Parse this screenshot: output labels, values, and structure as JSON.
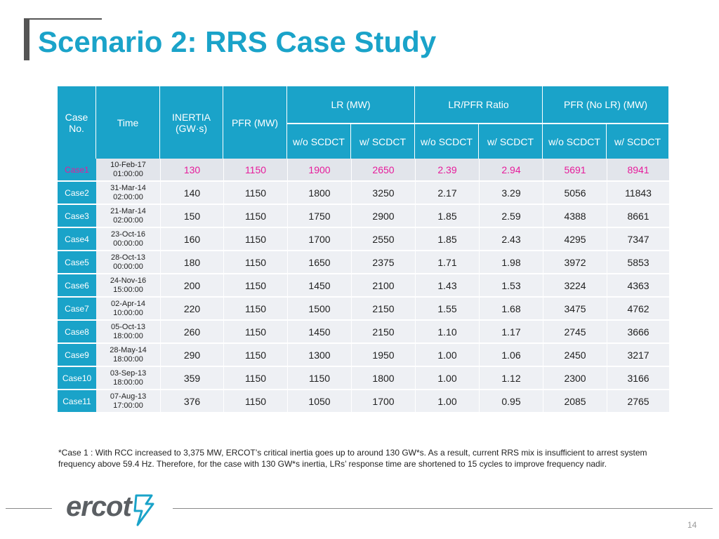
{
  "slide": {
    "title": "Scenario 2: RRS Case Study",
    "page_number": "14"
  },
  "table": {
    "headers": {
      "case": "Case No.",
      "time": "Time",
      "inertia": "INERTIA (GW·s)",
      "pfr": "PFR (MW)",
      "lr": "LR (MW)",
      "lr_pfr_ratio": "LR/PFR Ratio",
      "pfr_no_lr": "PFR (No LR) (MW)",
      "wo_scdct": "w/o SCDCT",
      "w_scdct": "w/ SCDCT"
    },
    "rows": [
      {
        "case": "Case1",
        "date": "10-Feb-17",
        "time": "01:00:00",
        "inertia": "130",
        "pfr": "1150",
        "lr_wo": "1900",
        "lr_w": "2650",
        "ratio_wo": "2.39",
        "ratio_w": "2.94",
        "nolr_wo": "5691",
        "nolr_w": "8941"
      },
      {
        "case": "Case2",
        "date": "31-Mar-14",
        "time": "02:00:00",
        "inertia": "140",
        "pfr": "1150",
        "lr_wo": "1800",
        "lr_w": "3250",
        "ratio_wo": "2.17",
        "ratio_w": "3.29",
        "nolr_wo": "5056",
        "nolr_w": "11843"
      },
      {
        "case": "Case3",
        "date": "21-Mar-14",
        "time": "02:00:00",
        "inertia": "150",
        "pfr": "1150",
        "lr_wo": "1750",
        "lr_w": "2900",
        "ratio_wo": "1.85",
        "ratio_w": "2.59",
        "nolr_wo": "4388",
        "nolr_w": "8661"
      },
      {
        "case": "Case4",
        "date": "23-Oct-16",
        "time": "00:00:00",
        "inertia": "160",
        "pfr": "1150",
        "lr_wo": "1700",
        "lr_w": "2550",
        "ratio_wo": "1.85",
        "ratio_w": "2.43",
        "nolr_wo": "4295",
        "nolr_w": "7347"
      },
      {
        "case": "Case5",
        "date": "28-Oct-13",
        "time": "00:00:00",
        "inertia": "180",
        "pfr": "1150",
        "lr_wo": "1650",
        "lr_w": "2375",
        "ratio_wo": "1.71",
        "ratio_w": "1.98",
        "nolr_wo": "3972",
        "nolr_w": "5853"
      },
      {
        "case": "Case6",
        "date": "24-Nov-16",
        "time": "15:00:00",
        "inertia": "200",
        "pfr": "1150",
        "lr_wo": "1450",
        "lr_w": "2100",
        "ratio_wo": "1.43",
        "ratio_w": "1.53",
        "nolr_wo": "3224",
        "nolr_w": "4363"
      },
      {
        "case": "Case7",
        "date": "02-Apr-14",
        "time": "10:00:00",
        "inertia": "220",
        "pfr": "1150",
        "lr_wo": "1500",
        "lr_w": "2150",
        "ratio_wo": "1.55",
        "ratio_w": "1.68",
        "nolr_wo": "3475",
        "nolr_w": "4762"
      },
      {
        "case": "Case8",
        "date": "05-Oct-13",
        "time": "18:00:00",
        "inertia": "260",
        "pfr": "1150",
        "lr_wo": "1450",
        "lr_w": "2150",
        "ratio_wo": "1.10",
        "ratio_w": "1.17",
        "nolr_wo": "2745",
        "nolr_w": "3666"
      },
      {
        "case": "Case9",
        "date": "28-May-14",
        "time": "18:00:00",
        "inertia": "290",
        "pfr": "1150",
        "lr_wo": "1300",
        "lr_w": "1950",
        "ratio_wo": "1.00",
        "ratio_w": "1.06",
        "nolr_wo": "2450",
        "nolr_w": "3217"
      },
      {
        "case": "Case10",
        "date": "03-Sep-13",
        "time": "18:00:00",
        "inertia": "359",
        "pfr": "1150",
        "lr_wo": "1150",
        "lr_w": "1800",
        "ratio_wo": "1.00",
        "ratio_w": "1.12",
        "nolr_wo": "2300",
        "nolr_w": "3166"
      },
      {
        "case": "Case11",
        "date": "07-Aug-13",
        "time": "17:00:00",
        "inertia": "376",
        "pfr": "1150",
        "lr_wo": "1050",
        "lr_w": "1700",
        "ratio_wo": "1.00",
        "ratio_w": "0.95",
        "nolr_wo": "2085",
        "nolr_w": "2765"
      }
    ]
  },
  "footnote": "*Case 1 : With RCC increased to 3,375 MW, ERCOT’s critical inertia goes up to around 130 GW*s. As a result, current RRS mix is insufficient to arrest system frequency above 59.4 Hz. Therefore, for the case with 130 GW*s inertia, LRs’ response time are shortened to 15 cycles to improve frequency nadir.",
  "logo": {
    "text": "ercot"
  },
  "colors": {
    "accent": "#1aa3c9",
    "highlight": "#e61c9b",
    "title_bar": "#555555"
  }
}
